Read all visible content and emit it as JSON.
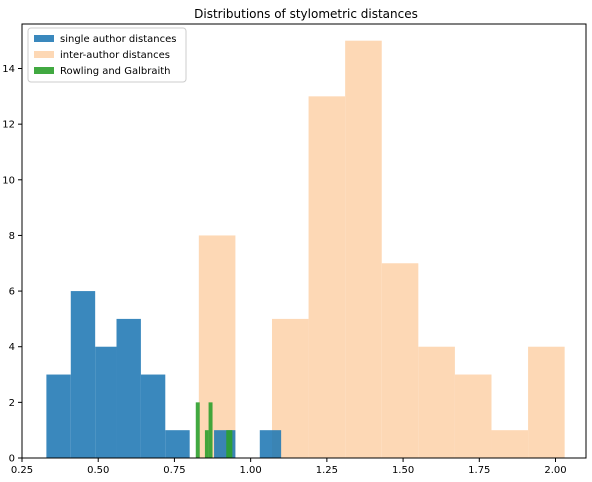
{
  "chart_data": {
    "type": "bar",
    "title": "Distributions of stylometric distances",
    "xlabel": "",
    "ylabel": "",
    "xlim": [
      0.25,
      2.1
    ],
    "ylim": [
      0,
      15.6
    ],
    "x_ticks": [
      "0.25",
      "0.50",
      "0.75",
      "1.00",
      "1.25",
      "1.50",
      "1.75",
      "2.00"
    ],
    "x_tick_values": [
      0.25,
      0.5,
      0.75,
      1.0,
      1.25,
      1.5,
      1.75,
      2.0
    ],
    "y_ticks": [
      "0",
      "2",
      "4",
      "6",
      "8",
      "10",
      "12",
      "14"
    ],
    "y_tick_values": [
      0,
      2,
      4,
      6,
      8,
      10,
      12,
      14
    ],
    "grid": false,
    "legend_position": "top-left",
    "series": [
      {
        "name": "inter-author distances",
        "color": "#fdd8b5",
        "opacity": 1,
        "bins": [
          {
            "x0": 0.83,
            "x1": 0.95,
            "value": 8
          },
          {
            "x0": 0.95,
            "x1": 1.07,
            "value": 0
          },
          {
            "x0": 1.07,
            "x1": 1.19,
            "value": 5
          },
          {
            "x0": 1.19,
            "x1": 1.31,
            "value": 13
          },
          {
            "x0": 1.31,
            "x1": 1.43,
            "value": 15
          },
          {
            "x0": 1.43,
            "x1": 1.55,
            "value": 7
          },
          {
            "x0": 1.55,
            "x1": 1.67,
            "value": 4
          },
          {
            "x0": 1.67,
            "x1": 1.79,
            "value": 3
          },
          {
            "x0": 1.79,
            "x1": 1.91,
            "value": 1
          },
          {
            "x0": 1.91,
            "x1": 2.03,
            "value": 4
          }
        ]
      },
      {
        "name": "single author distances",
        "color": "#1f77b4",
        "opacity": 0.88,
        "bins": [
          {
            "x0": 0.33,
            "x1": 0.41,
            "value": 3
          },
          {
            "x0": 0.41,
            "x1": 0.49,
            "value": 6
          },
          {
            "x0": 0.49,
            "x1": 0.56,
            "value": 4
          },
          {
            "x0": 0.56,
            "x1": 0.64,
            "value": 5
          },
          {
            "x0": 0.64,
            "x1": 0.72,
            "value": 3
          },
          {
            "x0": 0.72,
            "x1": 0.8,
            "value": 1
          },
          {
            "x0": 0.8,
            "x1": 0.88,
            "value": 0
          },
          {
            "x0": 0.88,
            "x1": 0.95,
            "value": 1
          },
          {
            "x0": 0.95,
            "x1": 1.03,
            "value": 0
          },
          {
            "x0": 1.03,
            "x1": 1.1,
            "value": 1
          }
        ]
      },
      {
        "name": "Rowling and Galbraith",
        "color": "#2ca02c",
        "opacity": 0.9,
        "bins": [
          {
            "x0": 0.82,
            "x1": 0.833,
            "value": 2
          },
          {
            "x0": 0.833,
            "x1": 0.85,
            "value": 0
          },
          {
            "x0": 0.85,
            "x1": 0.862,
            "value": 1
          },
          {
            "x0": 0.862,
            "x1": 0.875,
            "value": 2
          },
          {
            "x0": 0.875,
            "x1": 0.92,
            "value": 0
          },
          {
            "x0": 0.92,
            "x1": 0.94,
            "value": 1
          }
        ]
      }
    ],
    "legend_order": [
      "single author distances",
      "inter-author distances",
      "Rowling and Galbraith"
    ]
  }
}
